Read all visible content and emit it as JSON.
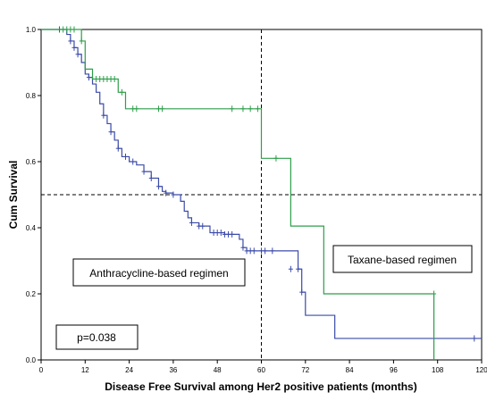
{
  "chart_data": {
    "type": "line",
    "step": true,
    "xlabel": "Disease Free Survival among Her2 positive patients (months)",
    "ylabel": "Cum Survival",
    "xlim": [
      0,
      120
    ],
    "ylim": [
      0,
      1.0
    ],
    "x_ticks": [
      0,
      12,
      24,
      36,
      48,
      60,
      72,
      84,
      96,
      108,
      120
    ],
    "y_ticks": [
      0.0,
      0.2,
      0.4,
      0.6,
      0.8,
      1.0
    ],
    "y_tick_labels": [
      "0.0",
      "0.2",
      "0.4",
      "0.6",
      "0.8",
      "1.0"
    ],
    "reference_lines": [
      {
        "orientation": "vertical",
        "value": 60
      },
      {
        "orientation": "horizontal",
        "value": 0.5
      }
    ],
    "colors": {
      "anthracycline": "#3b4ba8",
      "taxane": "#2e9e4a",
      "reference": "#000000"
    },
    "series": [
      {
        "name": "Anthracycline-based regimen",
        "color_key": "anthracycline",
        "x": [
          0,
          7,
          8,
          9,
          10,
          11,
          12,
          13,
          14,
          15,
          16,
          17,
          18,
          19,
          20,
          21,
          22,
          24,
          26,
          28,
          30,
          32,
          33,
          34,
          36,
          38,
          39,
          40,
          41,
          43,
          46,
          50,
          54,
          55,
          56,
          60,
          62,
          70,
          71,
          72,
          80,
          120
        ],
        "y": [
          1.0,
          0.985,
          0.965,
          0.945,
          0.925,
          0.9,
          0.865,
          0.855,
          0.835,
          0.81,
          0.775,
          0.74,
          0.715,
          0.69,
          0.665,
          0.64,
          0.615,
          0.6,
          0.59,
          0.57,
          0.55,
          0.525,
          0.51,
          0.505,
          0.5,
          0.48,
          0.45,
          0.43,
          0.415,
          0.405,
          0.385,
          0.38,
          0.365,
          0.34,
          0.33,
          0.33,
          0.33,
          0.275,
          0.205,
          0.135,
          0.065,
          0.065
        ],
        "censor_x": [
          5,
          8,
          9,
          10,
          13,
          17,
          19,
          21,
          23,
          25,
          28,
          30,
          32,
          34,
          36,
          41,
          43,
          44,
          47,
          48,
          49,
          50,
          51,
          52,
          55,
          56,
          57,
          58,
          60,
          61,
          63,
          68,
          70,
          71,
          118
        ],
        "censor_y": [
          1.0,
          0.965,
          0.945,
          0.925,
          0.855,
          0.74,
          0.69,
          0.64,
          0.615,
          0.6,
          0.57,
          0.55,
          0.525,
          0.505,
          0.5,
          0.415,
          0.405,
          0.405,
          0.385,
          0.385,
          0.385,
          0.38,
          0.38,
          0.38,
          0.34,
          0.33,
          0.33,
          0.33,
          0.33,
          0.33,
          0.33,
          0.275,
          0.275,
          0.205,
          0.065
        ]
      },
      {
        "name": "Taxane-based regimen",
        "color_key": "taxane",
        "x": [
          0,
          11,
          12,
          14,
          21,
          23,
          60,
          68,
          77,
          107
        ],
        "y": [
          1.0,
          0.965,
          0.88,
          0.85,
          0.81,
          0.76,
          0.61,
          0.405,
          0.2,
          0.0
        ],
        "censor_x": [
          6,
          7,
          8,
          9,
          11,
          15,
          16,
          17,
          18,
          19,
          20,
          22,
          25,
          26,
          32,
          33,
          52,
          55,
          57,
          59,
          64,
          107
        ],
        "censor_y": [
          1.0,
          1.0,
          1.0,
          1.0,
          0.965,
          0.85,
          0.85,
          0.85,
          0.85,
          0.85,
          0.85,
          0.81,
          0.76,
          0.76,
          0.76,
          0.76,
          0.76,
          0.76,
          0.76,
          0.76,
          0.61,
          0.2
        ]
      }
    ],
    "annotations": {
      "anthracycline_label": "Anthracycline-based regimen",
      "taxane_label": "Taxane-based regimen",
      "p_value": "p=0.038"
    }
  }
}
